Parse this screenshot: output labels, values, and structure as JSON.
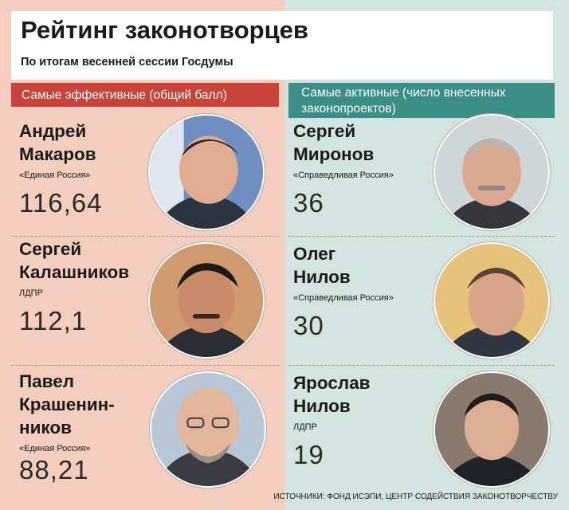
{
  "header": {
    "title": "Рейтинг законотворцев",
    "subtitle": "По итогам весенней сессии Госдумы"
  },
  "columns": {
    "left_header": "Самые эффективные (общий балл)",
    "right_header_line1": "Самые активные (число внесенных",
    "right_header_line2": "законопроектов)"
  },
  "left_entries": [
    {
      "name_line1": "Андрей",
      "name_line2": "Макаров",
      "name_line3": "",
      "party": "«Единая Россия»",
      "score": "116,64"
    },
    {
      "name_line1": "Сергей",
      "name_line2": "Калашников",
      "name_line3": "",
      "party": "ЛДПР",
      "score": "112,1"
    },
    {
      "name_line1": "Павел",
      "name_line2": "Крашенин-",
      "name_line3": "ников",
      "party": "«Единая Россия»",
      "score": "88,21"
    }
  ],
  "right_entries": [
    {
      "name_line1": "Сергей",
      "name_line2": "Миронов",
      "party": "«Справедливая Россия»",
      "score": "36"
    },
    {
      "name_line1": "Олег",
      "name_line2": "Нилов",
      "party": "«Справедливая Россия»",
      "score": "30"
    },
    {
      "name_line1": "Ярослав",
      "name_line2": "Нилов",
      "party": "ЛДПР",
      "score": "19"
    }
  ],
  "source": "ИСТОЧНИКИ: ФОНД ИСЭПИ, ЦЕНТР СОДЕЙСТВИЯ ЗАКОНОТВОРЧЕСТВУ",
  "colors": {
    "left_background": "#f3cdbd",
    "right_background": "#d2e3e0",
    "left_header": "#c8443a",
    "right_header": "#3a8e85"
  }
}
